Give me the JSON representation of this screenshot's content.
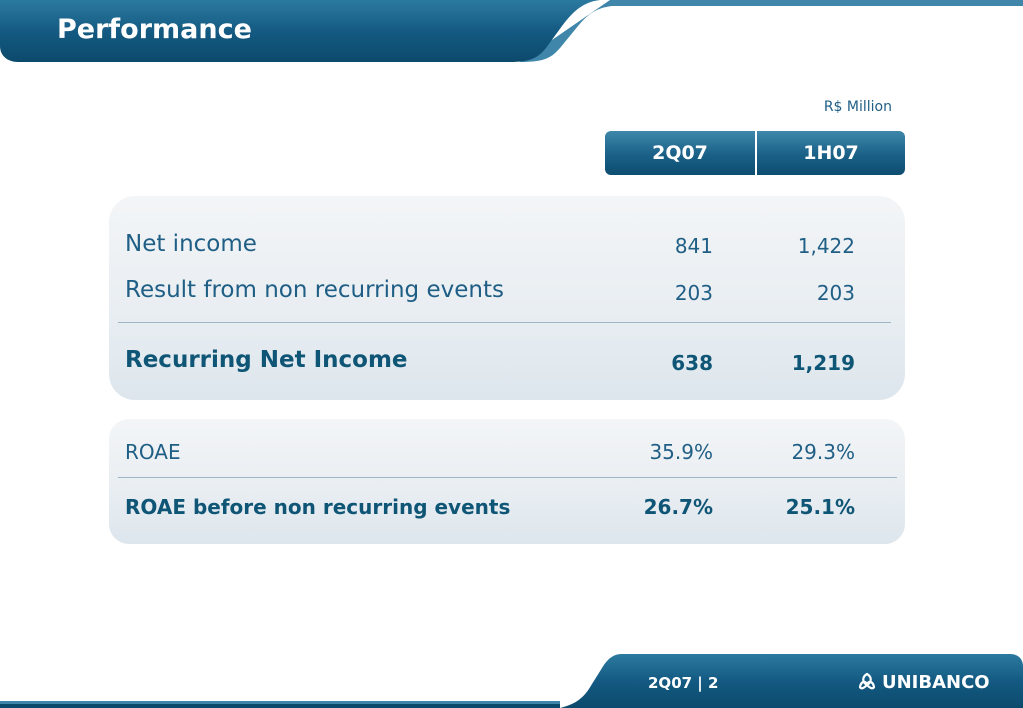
{
  "header": {
    "title": "Performance"
  },
  "unit": "R$ Million",
  "columns": [
    "2Q07",
    "1H07"
  ],
  "table1": {
    "rows": [
      {
        "label": "Net income",
        "values": [
          "841",
          "1,422"
        ]
      },
      {
        "label": "Result from non recurring events",
        "values": [
          "203",
          "203"
        ]
      }
    ],
    "total": {
      "label": "Recurring Net Income",
      "values": [
        "638",
        "1,219"
      ]
    }
  },
  "table2": {
    "rows": [
      {
        "label": "ROAE",
        "values": [
          "35.9%",
          "29.3%"
        ]
      }
    ],
    "total": {
      "label": "ROAE before non recurring events",
      "values": [
        "26.7%",
        "25.1%"
      ]
    }
  },
  "footer": {
    "page": "2Q07 | 2",
    "logo_text": "UNIBANCO",
    "logo_icon": "unibanco-logo-icon"
  },
  "colors": {
    "brand_dark": "#0d4d70",
    "brand_mid": "#1a6087",
    "text": "#1f5e85"
  }
}
